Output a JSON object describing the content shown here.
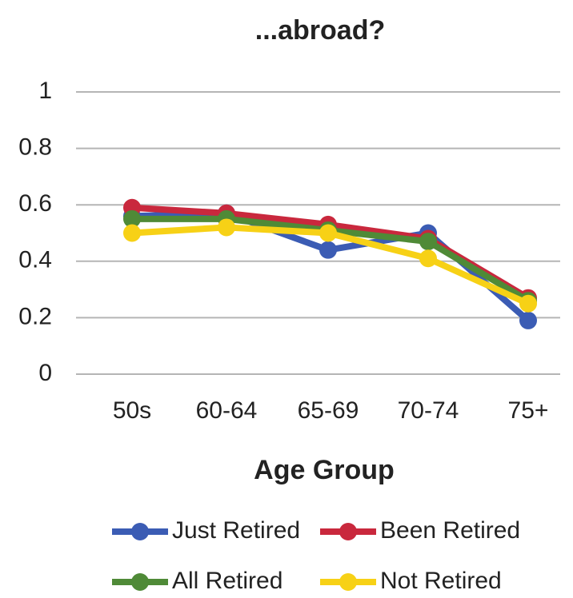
{
  "chart_data": {
    "type": "line",
    "title": "...abroad?",
    "x_label": "Age Group",
    "categories": [
      "50s",
      "60-64",
      "65-69",
      "70-74",
      "75+"
    ],
    "series": [
      {
        "name": "Just Retired",
        "color": "#3b5cb4",
        "values": [
          0.56,
          0.57,
          0.44,
          0.5,
          0.19
        ]
      },
      {
        "name": "Been Retired",
        "color": "#c9283d",
        "values": [
          0.59,
          0.57,
          0.53,
          0.48,
          0.27
        ]
      },
      {
        "name": "All Retired",
        "color": "#4f8a37",
        "values": [
          0.55,
          0.55,
          0.51,
          0.47,
          0.26
        ]
      },
      {
        "name": "Not Retired",
        "color": "#f7d116",
        "values": [
          0.5,
          0.52,
          0.5,
          0.41,
          0.25
        ]
      }
    ],
    "ylim": [
      0,
      1
    ],
    "yticks": [
      0,
      0.2,
      0.4,
      0.6,
      0.8,
      1
    ],
    "grid": true
  }
}
